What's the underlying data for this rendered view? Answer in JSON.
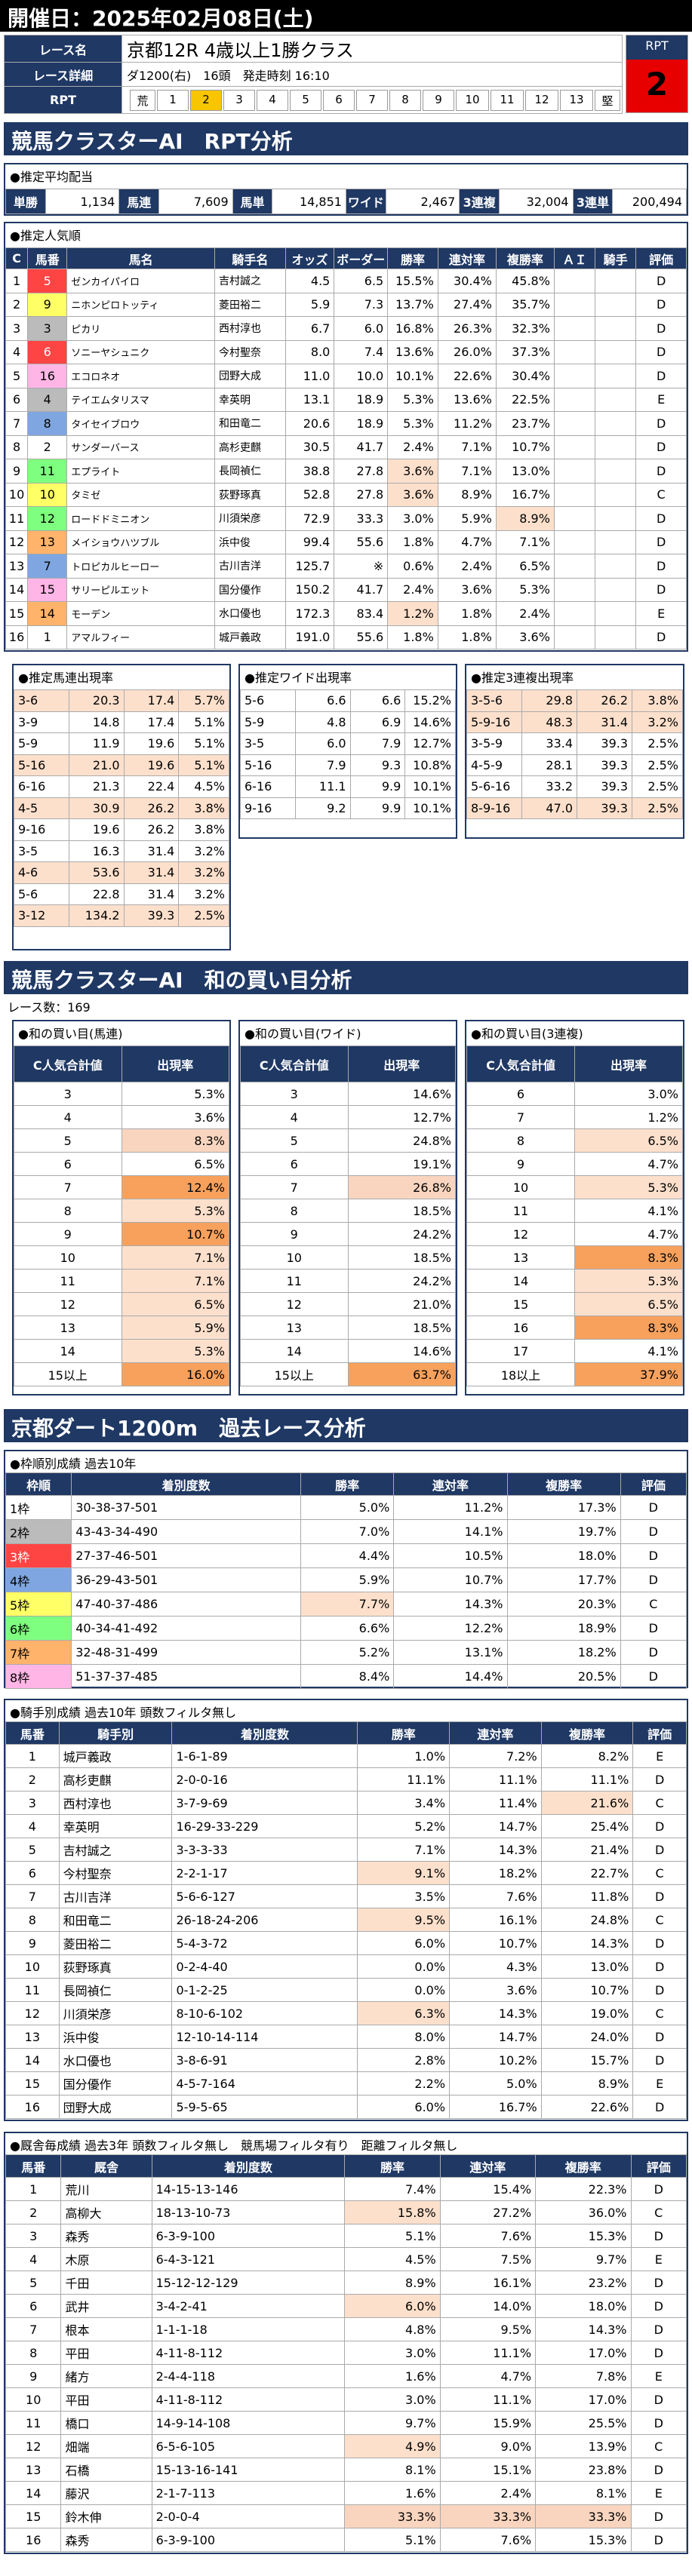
{
  "header": {
    "date": "開催日：2025年02月08日(土)",
    "race_name_label": "レース名",
    "race_name": "京都12R 4歳以上1勝クラス",
    "detail_label": "レース詳細",
    "detail": "ダ1200(右)　16頭　発走時刻 16:10",
    "rpt_label": "RPT",
    "rpt_badge_label": "RPT",
    "rpt_value": "2",
    "rpt_scale": [
      "荒",
      "1",
      "2",
      "3",
      "4",
      "5",
      "6",
      "7",
      "8",
      "9",
      "10",
      "11",
      "12",
      "13",
      "堅"
    ],
    "rpt_selected": 2
  },
  "rpt_section": {
    "title": "競馬クラスターAI　RPT分析",
    "payout_caption": "●推定平均配当",
    "payouts": [
      {
        "label": "単勝",
        "value": "1,134"
      },
      {
        "label": "馬連",
        "value": "7,609"
      },
      {
        "label": "馬単",
        "value": "14,851"
      },
      {
        "label": "ワイド",
        "value": "2,467"
      },
      {
        "label": "3連複",
        "value": "32,004"
      },
      {
        "label": "3連単",
        "value": "200,494"
      }
    ],
    "popularity_caption": "●推定人気順",
    "pop_headers": [
      "C",
      "馬番",
      "馬名",
      "騎手名",
      "オッズ",
      "ボーダー",
      "勝率",
      "連対率",
      "複勝率",
      "ＡＩ",
      "騎手",
      "評価"
    ],
    "horses": [
      [
        "1",
        "5",
        "ゼンカイパイロ",
        "吉村誠之",
        "4.5",
        "6.5",
        "15.5%",
        "30.4%",
        "45.8%",
        "",
        "",
        "D"
      ],
      [
        "2",
        "9",
        "ニホンピロトッティ",
        "菱田裕二",
        "5.9",
        "7.3",
        "13.7%",
        "27.4%",
        "35.7%",
        "",
        "",
        "D"
      ],
      [
        "3",
        "3",
        "ピカリ",
        "西村淳也",
        "6.7",
        "6.0",
        "16.8%",
        "26.3%",
        "32.3%",
        "",
        "",
        "D"
      ],
      [
        "4",
        "6",
        "ソニーヤシュニク",
        "今村聖奈",
        "8.0",
        "7.4",
        "13.6%",
        "26.0%",
        "37.3%",
        "",
        "",
        "D"
      ],
      [
        "5",
        "16",
        "エコロネオ",
        "団野大成",
        "11.0",
        "10.0",
        "10.1%",
        "22.6%",
        "30.4%",
        "",
        "",
        "D"
      ],
      [
        "6",
        "4",
        "テイエムタリスマ",
        "幸英明",
        "13.1",
        "18.9",
        "5.3%",
        "13.6%",
        "22.5%",
        "",
        "",
        "E"
      ],
      [
        "7",
        "8",
        "タイセイブロウ",
        "和田竜二",
        "20.6",
        "18.9",
        "5.3%",
        "11.2%",
        "23.7%",
        "",
        "",
        "D"
      ],
      [
        "8",
        "2",
        "サンダーバース",
        "高杉吏麒",
        "30.5",
        "41.7",
        "2.4%",
        "7.1%",
        "10.7%",
        "",
        "",
        "D"
      ],
      [
        "9",
        "11",
        "エプライト",
        "長岡禎仁",
        "38.8",
        "27.8",
        "3.6%",
        "7.1%",
        "13.0%",
        "",
        "",
        "D"
      ],
      [
        "10",
        "10",
        "タミゼ",
        "荻野琢真",
        "52.8",
        "27.8",
        "3.6%",
        "8.9%",
        "16.7%",
        "",
        "",
        "C"
      ],
      [
        "11",
        "12",
        "ロードドミニオン",
        "川須栄彦",
        "72.9",
        "33.3",
        "3.0%",
        "5.9%",
        "8.9%",
        "",
        "",
        "D"
      ],
      [
        "12",
        "13",
        "メイショウハツブル",
        "浜中俊",
        "99.4",
        "55.6",
        "1.8%",
        "4.7%",
        "7.1%",
        "",
        "",
        "D"
      ],
      [
        "13",
        "7",
        "トロピカルヒーロー",
        "古川吉洋",
        "125.7",
        "※",
        "0.6%",
        "2.4%",
        "6.5%",
        "",
        "",
        "D"
      ],
      [
        "14",
        "15",
        "サリーピルエット",
        "国分優作",
        "150.2",
        "41.7",
        "2.4%",
        "3.6%",
        "5.3%",
        "",
        "",
        "D"
      ],
      [
        "15",
        "14",
        "モーデン",
        "水口優也",
        "172.3",
        "83.4",
        "1.2%",
        "1.8%",
        "2.4%",
        "",
        "",
        "E"
      ],
      [
        "16",
        "1",
        "アマルフィー",
        "城戸義政",
        "191.0",
        "55.6",
        "1.8%",
        "1.8%",
        "3.6%",
        "",
        "",
        "D"
      ]
    ],
    "umaren_caption": "●推定馬連出現率",
    "umaren": [
      [
        "3-6",
        "20.3",
        "17.4",
        "5.7%"
      ],
      [
        "3-9",
        "14.8",
        "17.4",
        "5.1%"
      ],
      [
        "5-9",
        "11.9",
        "19.6",
        "5.1%"
      ],
      [
        "5-16",
        "21.0",
        "19.6",
        "5.1%"
      ],
      [
        "6-16",
        "21.3",
        "22.4",
        "4.5%"
      ],
      [
        "4-5",
        "30.9",
        "26.2",
        "3.8%"
      ],
      [
        "9-16",
        "19.6",
        "26.2",
        "3.8%"
      ],
      [
        "3-5",
        "16.3",
        "31.4",
        "3.2%"
      ],
      [
        "4-6",
        "53.6",
        "31.4",
        "3.2%"
      ],
      [
        "5-6",
        "22.8",
        "31.4",
        "3.2%"
      ],
      [
        "3-12",
        "134.2",
        "39.3",
        "2.5%"
      ]
    ],
    "wide_caption": "●推定ワイド出現率",
    "wide": [
      [
        "5-6",
        "6.6",
        "6.6",
        "15.2%"
      ],
      [
        "5-9",
        "4.8",
        "6.9",
        "14.6%"
      ],
      [
        "3-5",
        "6.0",
        "7.9",
        "12.7%"
      ],
      [
        "5-16",
        "7.9",
        "9.3",
        "10.8%"
      ],
      [
        "6-16",
        "11.1",
        "9.9",
        "10.1%"
      ],
      [
        "9-16",
        "9.2",
        "9.9",
        "10.1%"
      ]
    ],
    "trio_caption": "●推定3連複出現率",
    "trio": [
      [
        "3-5-6",
        "29.8",
        "26.2",
        "3.8%"
      ],
      [
        "5-9-16",
        "48.3",
        "31.4",
        "3.2%"
      ],
      [
        "3-5-9",
        "33.4",
        "39.3",
        "2.5%"
      ],
      [
        "4-5-9",
        "28.1",
        "39.3",
        "2.5%"
      ],
      [
        "5-6-16",
        "33.2",
        "39.3",
        "2.5%"
      ],
      [
        "8-9-16",
        "47.0",
        "39.3",
        "2.5%"
      ]
    ]
  },
  "wa_section": {
    "title": "競馬クラスターAI　和の買い目分析",
    "race_count": "レース数：169",
    "umaren_caption": "●和の買い目(馬連)",
    "wide_caption": "●和の買い目(ワイド)",
    "trio_caption": "●和の買い目(3連複)",
    "col1": "C人気合計値",
    "col2": "出現率",
    "umaren": [
      [
        "3",
        "5.3%"
      ],
      [
        "4",
        "3.6%"
      ],
      [
        "5",
        "8.3%"
      ],
      [
        "6",
        "6.5%"
      ],
      [
        "7",
        "12.4%"
      ],
      [
        "8",
        "5.3%"
      ],
      [
        "9",
        "10.7%"
      ],
      [
        "10",
        "7.1%"
      ],
      [
        "11",
        "7.1%"
      ],
      [
        "12",
        "6.5%"
      ],
      [
        "13",
        "5.9%"
      ],
      [
        "14",
        "5.3%"
      ],
      [
        "15以上",
        "16.0%"
      ]
    ],
    "wide": [
      [
        "3",
        "14.6%"
      ],
      [
        "4",
        "12.7%"
      ],
      [
        "5",
        "24.8%"
      ],
      [
        "6",
        "19.1%"
      ],
      [
        "7",
        "26.8%"
      ],
      [
        "8",
        "18.5%"
      ],
      [
        "9",
        "24.2%"
      ],
      [
        "10",
        "18.5%"
      ],
      [
        "11",
        "24.2%"
      ],
      [
        "12",
        "21.0%"
      ],
      [
        "13",
        "18.5%"
      ],
      [
        "14",
        "14.6%"
      ],
      [
        "15以上",
        "63.7%"
      ]
    ],
    "trio": [
      [
        "6",
        "3.0%"
      ],
      [
        "7",
        "1.2%"
      ],
      [
        "8",
        "6.5%"
      ],
      [
        "9",
        "4.7%"
      ],
      [
        "10",
        "5.3%"
      ],
      [
        "11",
        "4.1%"
      ],
      [
        "12",
        "4.7%"
      ],
      [
        "13",
        "8.3%"
      ],
      [
        "14",
        "5.3%"
      ],
      [
        "15",
        "6.5%"
      ],
      [
        "16",
        "8.3%"
      ],
      [
        "17",
        "4.1%"
      ],
      [
        "18以上",
        "37.9%"
      ]
    ]
  },
  "past_section": {
    "title": "京都ダート1200m　過去レース分析",
    "waku_caption": "●枠順別成績 過去10年",
    "waku_headers": [
      "枠順",
      "着別度数",
      "勝率",
      "連対率",
      "複勝率",
      "評価"
    ],
    "waku": [
      [
        "1枠",
        "30-38-37-501",
        "5.0%",
        "11.2%",
        "17.3%",
        "D"
      ],
      [
        "2枠",
        "43-43-34-490",
        "7.0%",
        "14.1%",
        "19.7%",
        "D"
      ],
      [
        "3枠",
        "27-37-46-501",
        "4.4%",
        "10.5%",
        "18.0%",
        "D"
      ],
      [
        "4枠",
        "36-29-43-501",
        "5.9%",
        "10.7%",
        "17.7%",
        "D"
      ],
      [
        "5枠",
        "47-40-37-486",
        "7.7%",
        "14.3%",
        "20.3%",
        "C"
      ],
      [
        "6枠",
        "40-34-41-492",
        "6.6%",
        "12.2%",
        "18.9%",
        "D"
      ],
      [
        "7枠",
        "32-48-31-499",
        "5.2%",
        "13.1%",
        "18.2%",
        "D"
      ],
      [
        "8枠",
        "51-37-37-485",
        "8.4%",
        "14.4%",
        "20.5%",
        "D"
      ]
    ],
    "jockey_caption": "●騎手別成績 過去10年 頭数フィルタ無し",
    "jockey_headers": [
      "馬番",
      "騎手別",
      "着別度数",
      "勝率",
      "連対率",
      "複勝率",
      "評価"
    ],
    "jockeys": [
      [
        "1",
        "城戸義政",
        "1-6-1-89",
        "1.0%",
        "7.2%",
        "8.2%",
        "E"
      ],
      [
        "2",
        "高杉吏麒",
        "2-0-0-16",
        "11.1%",
        "11.1%",
        "11.1%",
        "D"
      ],
      [
        "3",
        "西村淳也",
        "3-7-9-69",
        "3.4%",
        "11.4%",
        "21.6%",
        "C"
      ],
      [
        "4",
        "幸英明",
        "16-29-33-229",
        "5.2%",
        "14.7%",
        "25.4%",
        "D"
      ],
      [
        "5",
        "吉村誠之",
        "3-3-3-33",
        "7.1%",
        "14.3%",
        "21.4%",
        "D"
      ],
      [
        "6",
        "今村聖奈",
        "2-2-1-17",
        "9.1%",
        "18.2%",
        "22.7%",
        "C"
      ],
      [
        "7",
        "古川吉洋",
        "5-6-6-127",
        "3.5%",
        "7.6%",
        "11.8%",
        "D"
      ],
      [
        "8",
        "和田竜二",
        "26-18-24-206",
        "9.5%",
        "16.1%",
        "24.8%",
        "C"
      ],
      [
        "9",
        "菱田裕二",
        "5-4-3-72",
        "6.0%",
        "10.7%",
        "14.3%",
        "D"
      ],
      [
        "10",
        "荻野琢真",
        "0-2-4-40",
        "0.0%",
        "4.3%",
        "13.0%",
        "D"
      ],
      [
        "11",
        "長岡禎仁",
        "0-1-2-25",
        "0.0%",
        "3.6%",
        "10.7%",
        "D"
      ],
      [
        "12",
        "川須栄彦",
        "8-10-6-102",
        "6.3%",
        "14.3%",
        "19.0%",
        "C"
      ],
      [
        "13",
        "浜中俊",
        "12-10-14-114",
        "8.0%",
        "14.7%",
        "24.0%",
        "D"
      ],
      [
        "14",
        "水口優也",
        "3-8-6-91",
        "2.8%",
        "10.2%",
        "15.7%",
        "D"
      ],
      [
        "15",
        "国分優作",
        "4-5-7-164",
        "2.2%",
        "5.0%",
        "8.9%",
        "E"
      ],
      [
        "16",
        "団野大成",
        "5-9-5-65",
        "6.0%",
        "16.7%",
        "22.6%",
        "D"
      ]
    ],
    "trainer_caption": "●厩舎毎成績 過去3年 頭数フィルタ無し　競馬場フィルタ有り　距離フィルタ無し",
    "trainer_headers": [
      "馬番",
      "厩舎",
      "着別度数",
      "勝率",
      "連対率",
      "複勝率",
      "評価"
    ],
    "trainers": [
      [
        "1",
        "荒川",
        "14-15-13-146",
        "7.4%",
        "15.4%",
        "22.3%",
        "D"
      ],
      [
        "2",
        "高柳大",
        "18-13-10-73",
        "15.8%",
        "27.2%",
        "36.0%",
        "C"
      ],
      [
        "3",
        "森秀",
        "6-3-9-100",
        "5.1%",
        "7.6%",
        "15.3%",
        "D"
      ],
      [
        "4",
        "木原",
        "6-4-3-121",
        "4.5%",
        "7.5%",
        "9.7%",
        "E"
      ],
      [
        "5",
        "千田",
        "15-12-12-129",
        "8.9%",
        "16.1%",
        "23.2%",
        "D"
      ],
      [
        "6",
        "武井",
        "3-4-2-41",
        "6.0%",
        "14.0%",
        "18.0%",
        "D"
      ],
      [
        "7",
        "根本",
        "1-1-1-18",
        "4.8%",
        "9.5%",
        "14.3%",
        "D"
      ],
      [
        "8",
        "平田",
        "4-11-8-112",
        "3.0%",
        "11.1%",
        "17.0%",
        "D"
      ],
      [
        "9",
        "緒方",
        "2-4-4-118",
        "1.6%",
        "4.7%",
        "7.8%",
        "E"
      ],
      [
        "10",
        "平田",
        "4-11-8-112",
        "3.0%",
        "11.1%",
        "17.0%",
        "D"
      ],
      [
        "11",
        "橋口",
        "14-9-14-108",
        "9.7%",
        "15.9%",
        "25.5%",
        "D"
      ],
      [
        "12",
        "畑端",
        "6-5-6-105",
        "4.9%",
        "9.0%",
        "13.9%",
        "C"
      ],
      [
        "13",
        "石橋",
        "15-13-16-141",
        "8.1%",
        "15.1%",
        "23.8%",
        "D"
      ],
      [
        "14",
        "藤沢",
        "2-1-7-113",
        "1.6%",
        "2.4%",
        "8.1%",
        "E"
      ],
      [
        "15",
        "鈴木伸",
        "2-0-0-4",
        "33.3%",
        "33.3%",
        "33.3%",
        "D"
      ],
      [
        "16",
        "森秀",
        "6-3-9-100",
        "5.1%",
        "7.6%",
        "15.3%",
        "D"
      ]
    ]
  },
  "colors": {
    "header_navy": "#1f3864",
    "highlight_gold": "#f7c600",
    "highlight_pink": "#f9d5bf",
    "highlight_orange": "#f7a15d"
  }
}
